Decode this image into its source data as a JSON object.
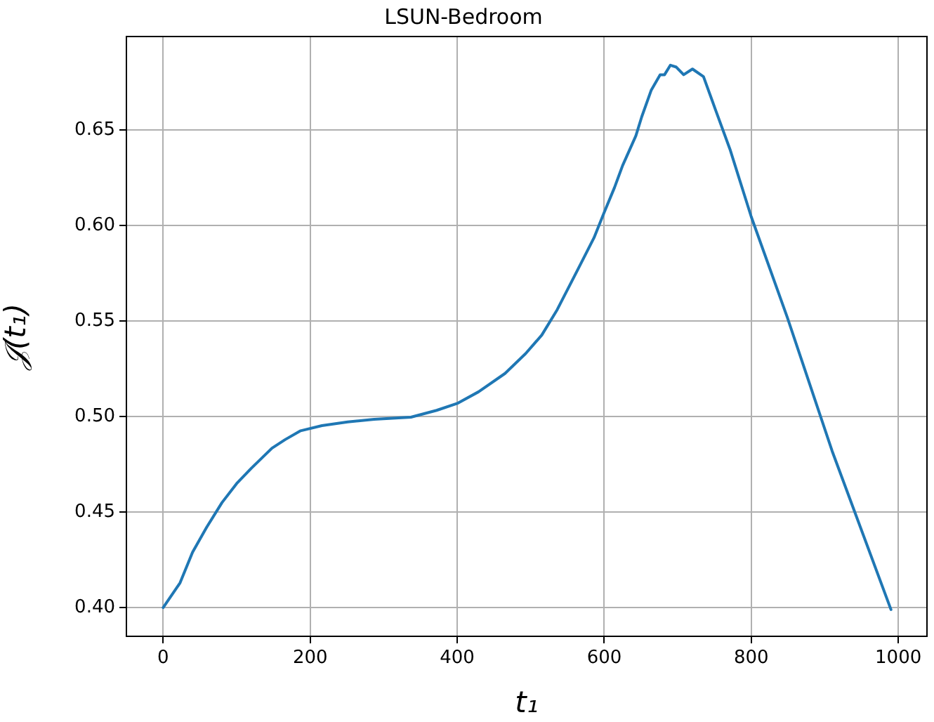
{
  "chart_data": {
    "type": "line",
    "title": "LSUN-Bedroom",
    "xlabel": "t₁",
    "ylabel": "𝒥(t₁)",
    "x": [
      0,
      23,
      40,
      59,
      80,
      100,
      120,
      148,
      166,
      187,
      216,
      251,
      287,
      337,
      372,
      400,
      429,
      465,
      493,
      515,
      536,
      564,
      586,
      600,
      614,
      625,
      643,
      651,
      664,
      676,
      682,
      690,
      698,
      708,
      720,
      735,
      751,
      771,
      800,
      849,
      910,
      990
    ],
    "series": [
      {
        "color": "#1f77b4",
        "values": [
          0.4,
          0.413,
          0.429,
          0.442,
          0.455,
          0.465,
          0.473,
          0.4835,
          0.488,
          0.4926,
          0.4953,
          0.4972,
          0.4986,
          0.4997,
          0.5033,
          0.5069,
          0.513,
          0.5226,
          0.533,
          0.5427,
          0.556,
          0.577,
          0.5936,
          0.607,
          0.62,
          0.6315,
          0.647,
          0.657,
          0.671,
          0.679,
          0.679,
          0.684,
          0.683,
          0.679,
          0.682,
          0.678,
          0.661,
          0.64,
          0.6046,
          0.552,
          0.482,
          0.399
        ]
      }
    ],
    "xlim": [
      -50,
      1039
    ],
    "ylim": [
      0.385,
      0.699
    ],
    "xticks": [
      0,
      200,
      400,
      600,
      800,
      1000
    ],
    "yticks": [
      {
        "value": 0.4,
        "label": "0.40"
      },
      {
        "value": 0.45,
        "label": "0.45"
      },
      {
        "value": 0.5,
        "label": "0.50"
      },
      {
        "value": 0.55,
        "label": "0.55"
      },
      {
        "value": 0.6,
        "label": "0.60"
      },
      {
        "value": 0.65,
        "label": "0.65"
      }
    ],
    "grid": true,
    "legend": false,
    "marker": "none",
    "line_style": "solid"
  }
}
